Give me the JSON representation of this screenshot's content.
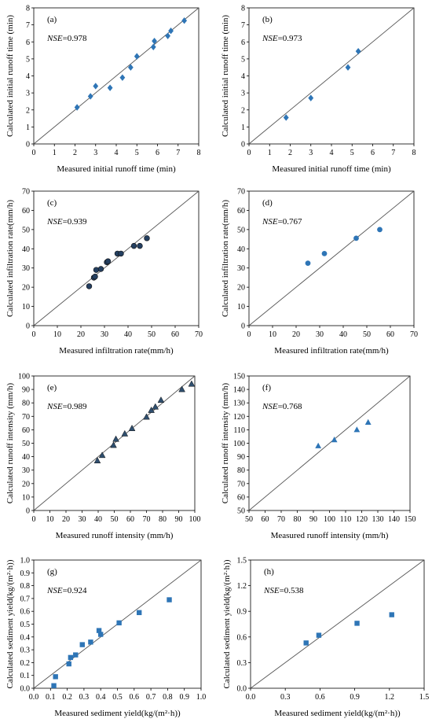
{
  "figure": {
    "colors": {
      "marker_blue": "#2e75b6",
      "marker_dark": "#243f60",
      "marker_triangle": "#2f4f6f",
      "axis": "#000000",
      "one_to_one_line": "#555555"
    }
  },
  "chart_data": [
    {
      "id": "a",
      "type": "scatter",
      "panel_label": "(a)",
      "nse_label": "NSE",
      "nse_value": "=0.978",
      "xlabel": "Measured initial runoff time (min)",
      "ylabel": "Calculated initial runoff time (min)",
      "xlim": [
        0,
        8
      ],
      "ylim": [
        0,
        8
      ],
      "xticks": [
        "0",
        "1",
        "2",
        "3",
        "4",
        "5",
        "6",
        "7",
        "8"
      ],
      "yticks": [
        "0",
        "1",
        "2",
        "3",
        "4",
        "5",
        "6",
        "7",
        "8"
      ],
      "marker": "diamond",
      "marker_color": "#2e75b6",
      "one_to_one_line": true,
      "points": [
        [
          2.1,
          2.15
        ],
        [
          2.75,
          2.8
        ],
        [
          3.0,
          3.4
        ],
        [
          3.7,
          3.3
        ],
        [
          4.3,
          3.9
        ],
        [
          4.7,
          4.5
        ],
        [
          5.0,
          5.15
        ],
        [
          5.8,
          5.7
        ],
        [
          5.85,
          6.05
        ],
        [
          6.5,
          6.35
        ],
        [
          6.65,
          6.65
        ],
        [
          7.3,
          7.25
        ]
      ]
    },
    {
      "id": "b",
      "type": "scatter",
      "panel_label": "(b)",
      "nse_label": "NSE",
      "nse_value": "=0.973",
      "xlabel": "Measured initial runoff time (min)",
      "ylabel": "Calculated initial runoff time (min)",
      "xlim": [
        0,
        8
      ],
      "ylim": [
        0,
        8
      ],
      "xticks": [
        "0",
        "1",
        "2",
        "3",
        "4",
        "5",
        "6",
        "7",
        "8"
      ],
      "yticks": [
        "0",
        "1",
        "2",
        "3",
        "4",
        "5",
        "6",
        "7",
        "8"
      ],
      "marker": "diamond",
      "marker_color": "#2e75b6",
      "one_to_one_line": true,
      "points": [
        [
          1.8,
          1.55
        ],
        [
          3.0,
          2.7
        ],
        [
          4.8,
          4.5
        ],
        [
          5.3,
          5.45
        ]
      ]
    },
    {
      "id": "c",
      "type": "scatter",
      "panel_label": "(c)",
      "nse_label": "NSE",
      "nse_value": "=0.939",
      "xlabel": "Measured infiltration rate(mm/h)",
      "ylabel": "Calculated infiltration rate(mm/h)",
      "xlim": [
        0,
        70
      ],
      "ylim": [
        0,
        70
      ],
      "xticks": [
        "0",
        "10",
        "20",
        "30",
        "40",
        "50",
        "60",
        "70"
      ],
      "yticks": [
        "0",
        "10",
        "20",
        "30",
        "40",
        "50",
        "60",
        "70"
      ],
      "marker": "circle",
      "marker_color": "#243f60",
      "one_to_one_line": true,
      "points": [
        [
          23.5,
          20.5
        ],
        [
          25.5,
          25.0
        ],
        [
          26.0,
          25.5
        ],
        [
          26.5,
          29.0
        ],
        [
          28.5,
          29.5
        ],
        [
          31.0,
          33.0
        ],
        [
          31.5,
          33.5
        ],
        [
          35.5,
          37.5
        ],
        [
          37.0,
          37.5
        ],
        [
          42.5,
          41.5
        ],
        [
          45.0,
          41.5
        ],
        [
          48.0,
          45.5
        ]
      ]
    },
    {
      "id": "d",
      "type": "scatter",
      "panel_label": "(d)",
      "nse_label": "NSE",
      "nse_value": "=0.767",
      "xlabel": "Measured infiltration rate(mm/h)",
      "ylabel": "Calculated infiltration rate(mm/h)",
      "xlim": [
        0,
        70
      ],
      "ylim": [
        0,
        70
      ],
      "xticks": [
        "0",
        "10",
        "20",
        "30",
        "40",
        "50",
        "60",
        "70"
      ],
      "yticks": [
        "0",
        "10",
        "20",
        "30",
        "40",
        "50",
        "60",
        "70"
      ],
      "marker": "circle",
      "marker_color": "#2e75b6",
      "one_to_one_line": true,
      "points": [
        [
          25.0,
          32.5
        ],
        [
          32.0,
          37.5
        ],
        [
          45.5,
          45.5
        ],
        [
          55.5,
          50.0
        ]
      ]
    },
    {
      "id": "e",
      "type": "scatter",
      "panel_label": "(e)",
      "nse_label": "NSE",
      "nse_value": "=0.989",
      "xlabel": "Measured runoff intensity  (mm/h)",
      "ylabel": "Calculated runoff intensity  (mm/h)",
      "xlim": [
        0,
        100
      ],
      "ylim": [
        0,
        100
      ],
      "xticks": [
        "0",
        "10",
        "20",
        "30",
        "40",
        "50",
        "60",
        "70",
        "80",
        "90",
        "100"
      ],
      "yticks": [
        "0",
        "10",
        "20",
        "30",
        "40",
        "50",
        "60",
        "70",
        "80",
        "90",
        "100"
      ],
      "marker": "triangle",
      "marker_color": "#2f4f6f",
      "one_to_one_line": true,
      "points": [
        [
          39.5,
          37.0
        ],
        [
          42.5,
          41.0
        ],
        [
          49.5,
          48.5
        ],
        [
          51.0,
          53.0
        ],
        [
          56.5,
          57.0
        ],
        [
          61.0,
          61.0
        ],
        [
          70.0,
          69.5
        ],
        [
          73.0,
          74.5
        ],
        [
          75.5,
          77.0
        ],
        [
          79.0,
          82.0
        ],
        [
          92.0,
          90.0
        ],
        [
          98.0,
          94.0
        ]
      ]
    },
    {
      "id": "f",
      "type": "scatter",
      "panel_label": "(f)",
      "nse_label": "NSE",
      "nse_value": "=0.768",
      "xlabel": "Measured runoff intensity  (mm/h)",
      "ylabel": "Calculated runoff intensity  (mm/h)",
      "xlim": [
        50,
        150
      ],
      "ylim": [
        50,
        150
      ],
      "xticks": [
        "50",
        "60",
        "70",
        "80",
        "90",
        "100",
        "110",
        "120",
        "130",
        "140",
        "150"
      ],
      "yticks": [
        "50",
        "60",
        "70",
        "80",
        "90",
        "100",
        "110",
        "120",
        "130",
        "140",
        "150"
      ],
      "marker": "triangle",
      "marker_color": "#2e75b6",
      "one_to_one_line": true,
      "points": [
        [
          93.0,
          98.0
        ],
        [
          103.0,
          102.5
        ],
        [
          117.0,
          110.0
        ],
        [
          124.0,
          115.5
        ]
      ]
    },
    {
      "id": "g",
      "type": "scatter",
      "panel_label": "(g)",
      "nse_label": "NSE",
      "nse_value": "=0.924",
      "xlabel": "Measured sediment yield(kg/(m²·h))",
      "ylabel": "Calculated sediment yield(kg/(m²·h))",
      "xlim": [
        0,
        1.0
      ],
      "ylim": [
        0,
        1.0
      ],
      "xticks": [
        "0.0",
        "0.1",
        "0.2",
        "0.3",
        "0.4",
        "0.5",
        "0.6",
        "0.7",
        "0.8",
        "0.9",
        "1.0"
      ],
      "yticks": [
        "0.0",
        "0.1",
        "0.2",
        "0.3",
        "0.4",
        "0.5",
        "0.6",
        "0.7",
        "0.8",
        "0.9",
        "1.0"
      ],
      "marker": "square",
      "marker_color": "#2e75b6",
      "one_to_one_line": true,
      "points": [
        [
          0.12,
          0.02
        ],
        [
          0.13,
          0.09
        ],
        [
          0.21,
          0.19
        ],
        [
          0.22,
          0.24
        ],
        [
          0.25,
          0.26
        ],
        [
          0.29,
          0.34
        ],
        [
          0.34,
          0.36
        ],
        [
          0.39,
          0.45
        ],
        [
          0.4,
          0.42
        ],
        [
          0.51,
          0.51
        ],
        [
          0.63,
          0.59
        ],
        [
          0.81,
          0.69
        ]
      ]
    },
    {
      "id": "h",
      "type": "scatter",
      "panel_label": "(h)",
      "nse_label": "NSE",
      "nse_value": "=0.538",
      "xlabel": "Measured sediment yield(kg/(m²·h))",
      "ylabel": "Calculated sediment yield(kg/(m²·h))",
      "xlim": [
        0,
        1.5
      ],
      "ylim": [
        0,
        1.5
      ],
      "xticks": [
        "0.0",
        "0.3",
        "0.6",
        "0.9",
        "1.2",
        "1.5"
      ],
      "yticks": [
        "0.0",
        "0.3",
        "0.6",
        "0.9",
        "1.2",
        "1.5"
      ],
      "marker": "square",
      "marker_color": "#2e75b6",
      "one_to_one_line": true,
      "points": [
        [
          0.48,
          0.53
        ],
        [
          0.59,
          0.62
        ],
        [
          0.92,
          0.76
        ],
        [
          1.22,
          0.86
        ]
      ]
    }
  ]
}
